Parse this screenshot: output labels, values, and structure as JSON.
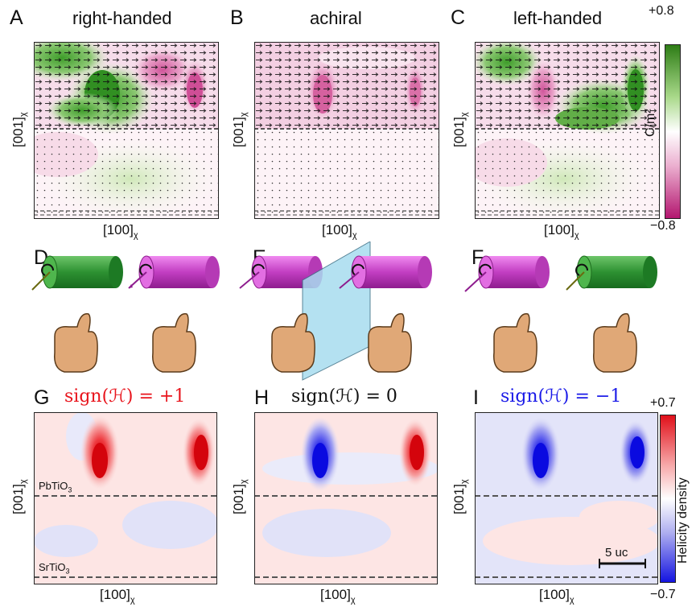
{
  "panels": {
    "A": {
      "letter": "A",
      "title": "right-handed"
    },
    "B": {
      "letter": "B",
      "title": "achiral"
    },
    "C": {
      "letter": "C",
      "title": "left-handed"
    },
    "D": {
      "letter": "D"
    },
    "E": {
      "letter": "E"
    },
    "F": {
      "letter": "F"
    },
    "G": {
      "letter": "G",
      "title": "sign(ℋ) = +1"
    },
    "H": {
      "letter": "H",
      "title": "sign(ℋ) = 0"
    },
    "I": {
      "letter": "I",
      "title": "sign(ℋ) = −1"
    }
  },
  "axes": {
    "x_label": "[100]",
    "x_sub": "χ",
    "y_label": "[001]",
    "y_sub": "χ"
  },
  "colorbar_top": {
    "max": "+0.8",
    "min": "−0.8",
    "unit": "C/m²",
    "colors": [
      "#2e8b1e",
      "#ffffff",
      "#c2187a"
    ]
  },
  "colorbar_bottom": {
    "max": "+0.7",
    "min": "−0.7",
    "label": "Helicity density",
    "colors": [
      "#e8141c",
      "#ffffff",
      "#1a1ae8"
    ]
  },
  "materials": {
    "top": "PbTiO",
    "top_sub": "3",
    "bottom": "SrTiO",
    "bottom_sub": "3"
  },
  "scalebar": "5 uc",
  "colors": {
    "green": "#2f8f2f",
    "magenta": "#c13fc1",
    "title_red": "#e8141c",
    "title_blue": "#1a1ae8",
    "hand": "#e0a877",
    "mirror": "#a8dcef"
  }
}
